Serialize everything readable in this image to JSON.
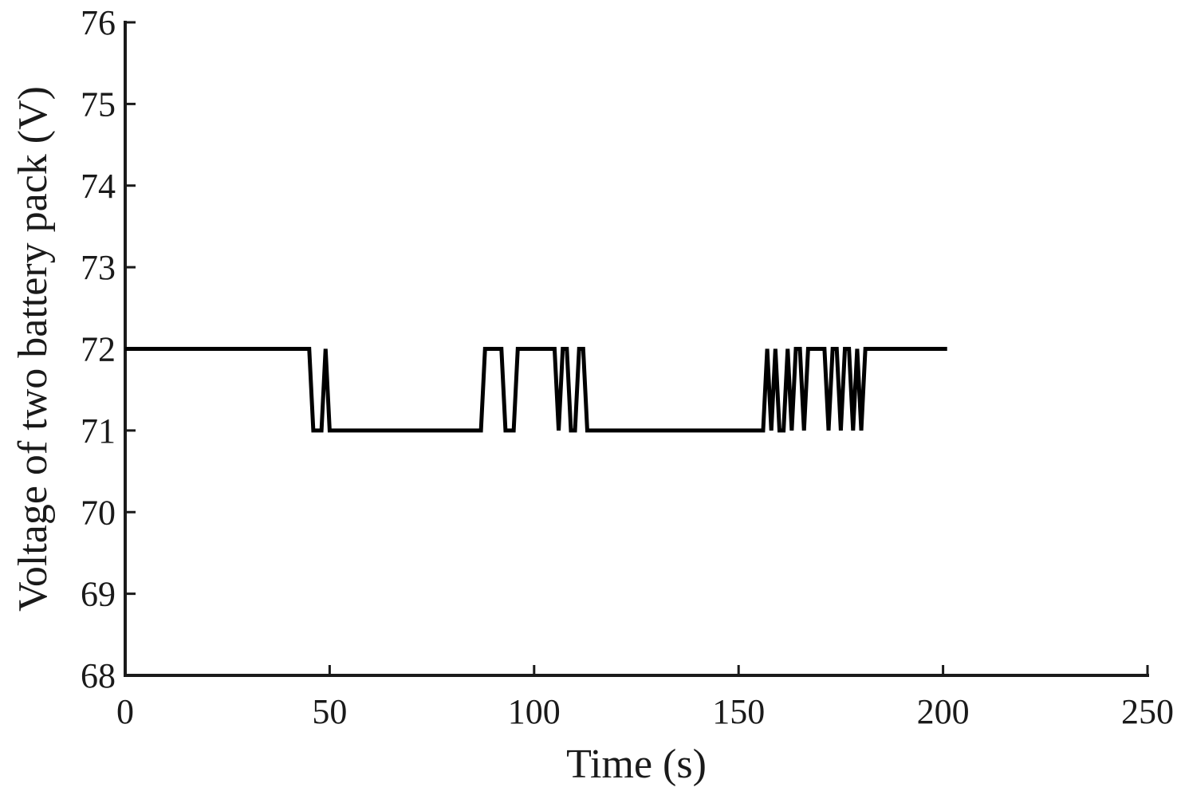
{
  "chart_data": {
    "type": "line",
    "xlabel": "Time (s)",
    "ylabel": "Voltage of two battery pack (V)",
    "xlim": [
      0,
      250
    ],
    "ylim": [
      68,
      76
    ],
    "xticks": [
      0,
      50,
      100,
      150,
      200,
      250
    ],
    "yticks": [
      68,
      69,
      70,
      71,
      72,
      73,
      74,
      75,
      76
    ],
    "xtick_labels": [
      "0",
      "50",
      "100",
      "150",
      "200",
      "250"
    ],
    "ytick_labels": [
      "68",
      "69",
      "70",
      "71",
      "72",
      "73",
      "74",
      "75",
      "76"
    ],
    "grid": false,
    "series": [
      {
        "color": "#000000",
        "x": [
          0,
          45,
          46,
          48,
          49,
          50,
          87,
          88,
          92,
          93,
          95,
          96,
          105,
          106,
          107,
          108,
          109,
          110,
          111,
          112,
          113,
          156,
          157,
          158,
          159,
          160,
          161,
          162,
          163,
          164,
          165,
          166,
          167,
          168,
          171,
          172,
          173,
          174,
          175,
          176,
          177,
          178,
          179,
          180,
          181,
          201
        ],
        "y": [
          72,
          72,
          71,
          71,
          72,
          71,
          71,
          72,
          72,
          71,
          71,
          72,
          72,
          71,
          72,
          72,
          71,
          71,
          72,
          72,
          71,
          71,
          72,
          71,
          72,
          71,
          71,
          72,
          71,
          72,
          72,
          71,
          72,
          72,
          72,
          71,
          72,
          72,
          71,
          72,
          72,
          71,
          72,
          71,
          72,
          72
        ]
      }
    ]
  }
}
